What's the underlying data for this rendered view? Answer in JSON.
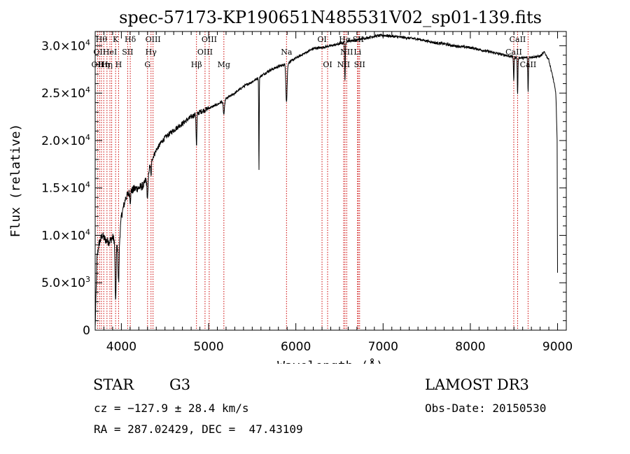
{
  "chart_data": {
    "type": "line",
    "title": "spec-57173-KP190651N485531V02_sp01-139.fits",
    "xlabel": "Wavelength (Å)",
    "ylabel": "Flux (relative)",
    "xlim": [
      3700,
      9100
    ],
    "ylim": [
      0,
      31500
    ],
    "xticks": [
      {
        "value": 4000,
        "label": "4000"
      },
      {
        "value": 5000,
        "label": "5000"
      },
      {
        "value": 6000,
        "label": "6000"
      },
      {
        "value": 7000,
        "label": "7000"
      },
      {
        "value": 8000,
        "label": "8000"
      },
      {
        "value": 9000,
        "label": "9000"
      }
    ],
    "yticks": [
      {
        "value": 0,
        "mant": "0",
        "exp": ""
      },
      {
        "value": 5000,
        "mant": "5.0×10",
        "exp": "3"
      },
      {
        "value": 10000,
        "mant": "1.0×10",
        "exp": "4"
      },
      {
        "value": 15000,
        "mant": "1.5×10",
        "exp": "4"
      },
      {
        "value": 20000,
        "mant": "2.0×10",
        "exp": "4"
      },
      {
        "value": 25000,
        "mant": "2.5×10",
        "exp": "4"
      },
      {
        "value": 30000,
        "mant": "3.0×10",
        "exp": "4"
      }
    ],
    "continuum": [
      [
        3700,
        200
      ],
      [
        3720,
        7500
      ],
      [
        3740,
        9000
      ],
      [
        3780,
        10000
      ],
      [
        3820,
        9500
      ],
      [
        3860,
        9300
      ],
      [
        3900,
        9800
      ],
      [
        3950,
        9000
      ],
      [
        3970,
        8500
      ],
      [
        4000,
        12000
      ],
      [
        4050,
        14000
      ],
      [
        4100,
        14600
      ],
      [
        4150,
        14900
      ],
      [
        4200,
        15000
      ],
      [
        4260,
        15300
      ],
      [
        4300,
        16500
      ],
      [
        4350,
        18000
      ],
      [
        4400,
        19000
      ],
      [
        4450,
        19700
      ],
      [
        4500,
        20300
      ],
      [
        4600,
        21100
      ],
      [
        4700,
        21800
      ],
      [
        4800,
        22500
      ],
      [
        4900,
        23000
      ],
      [
        5000,
        23400
      ],
      [
        5100,
        23800
      ],
      [
        5200,
        24400
      ],
      [
        5300,
        25000
      ],
      [
        5400,
        25700
      ],
      [
        5500,
        26200
      ],
      [
        5600,
        26800
      ],
      [
        5700,
        27400
      ],
      [
        5800,
        27800
      ],
      [
        5900,
        28100
      ],
      [
        6000,
        28700
      ],
      [
        6100,
        29200
      ],
      [
        6200,
        29700
      ],
      [
        6300,
        29800
      ],
      [
        6400,
        30000
      ],
      [
        6500,
        30200
      ],
      [
        6600,
        30500
      ],
      [
        6700,
        30600
      ],
      [
        6800,
        30800
      ],
      [
        6900,
        31000
      ],
      [
        7000,
        31100
      ],
      [
        7100,
        31000
      ],
      [
        7200,
        30900
      ],
      [
        7300,
        30800
      ],
      [
        7400,
        30700
      ],
      [
        7500,
        30500
      ],
      [
        7600,
        30300
      ],
      [
        7700,
        30200
      ],
      [
        7800,
        30000
      ],
      [
        7900,
        29900
      ],
      [
        8000,
        29800
      ],
      [
        8100,
        29600
      ],
      [
        8200,
        29400
      ],
      [
        8300,
        29200
      ],
      [
        8400,
        29000
      ],
      [
        8500,
        28800
      ],
      [
        8600,
        28700
      ],
      [
        8700,
        28800
      ],
      [
        8800,
        28900
      ],
      [
        8850,
        29300
      ],
      [
        8900,
        28500
      ],
      [
        8950,
        26500
      ],
      [
        8980,
        25000
      ],
      [
        8995,
        20000
      ],
      [
        9000,
        6000
      ]
    ],
    "absorption_lines": [
      {
        "center": 3934,
        "depth": 6500,
        "width": 8
      },
      {
        "center": 3968,
        "depth": 3500,
        "width": 8
      },
      {
        "center": 4102,
        "depth": 1000,
        "width": 6
      },
      {
        "center": 4300,
        "depth": 2500,
        "width": 10
      },
      {
        "center": 4340,
        "depth": 1500,
        "width": 6
      },
      {
        "center": 4861,
        "depth": 3500,
        "width": 6
      },
      {
        "center": 5175,
        "depth": 1500,
        "width": 10
      },
      {
        "center": 5577,
        "depth": 10000,
        "width": 4
      },
      {
        "center": 5893,
        "depth": 4000,
        "width": 10
      },
      {
        "center": 6563,
        "depth": 4200,
        "width": 5
      },
      {
        "center": 8498,
        "depth": 2500,
        "width": 5
      },
      {
        "center": 8542,
        "depth": 4000,
        "width": 5
      },
      {
        "center": 8662,
        "depth": 3700,
        "width": 5
      }
    ],
    "line_markers": [
      {
        "x": 3727,
        "label": "OII",
        "row": 2
      },
      {
        "x": 3750,
        "label": "OII",
        "row": 1
      },
      {
        "x": 3771,
        "label": "Hθ",
        "row": 0
      },
      {
        "x": 3798,
        "label": "Hη",
        "row": 2
      },
      {
        "x": 3835,
        "label": "Hη",
        "row": 2
      },
      {
        "x": 3869,
        "label": "HeI",
        "row": 1
      },
      {
        "x": 3889,
        "label": "",
        "row": 0
      },
      {
        "x": 3934,
        "label": "K",
        "row": 0
      },
      {
        "x": 3968,
        "label": "H",
        "row": 2
      },
      {
        "x": 4072,
        "label": "SII",
        "row": 1
      },
      {
        "x": 4102,
        "label": "Hδ",
        "row": 0
      },
      {
        "x": 4300,
        "label": "G",
        "row": 2
      },
      {
        "x": 4340,
        "label": "Hγ",
        "row": 1
      },
      {
        "x": 4363,
        "label": "OIII",
        "row": 0
      },
      {
        "x": 4861,
        "label": "Hβ",
        "row": 2
      },
      {
        "x": 4959,
        "label": "OIII",
        "row": 1
      },
      {
        "x": 5007,
        "label": "OIII",
        "row": 0
      },
      {
        "x": 5175,
        "label": "Mg",
        "row": 2
      },
      {
        "x": 5893,
        "label": "Na",
        "row": 1
      },
      {
        "x": 6300,
        "label": "OI",
        "row": 0
      },
      {
        "x": 6364,
        "label": "OI",
        "row": 2
      },
      {
        "x": 6548,
        "label": "NII",
        "row": 2
      },
      {
        "x": 6563,
        "label": "Hα",
        "row": 0
      },
      {
        "x": 6583,
        "label": "NII",
        "row": 1
      },
      {
        "x": 6707,
        "label": "Li",
        "row": 1
      },
      {
        "x": 6716,
        "label": "SII",
        "row": 0
      },
      {
        "x": 6731,
        "label": "SII",
        "row": 2
      },
      {
        "x": 8498,
        "label": "CaII",
        "row": 1
      },
      {
        "x": 8542,
        "label": "CaII",
        "row": 0
      },
      {
        "x": 8662,
        "label": "CaII",
        "row": 2
      }
    ]
  },
  "info": {
    "object_class": "STAR",
    "subclass": "G3",
    "survey": "LAMOST DR3",
    "redshift_line": "cz = −127.9 ± 28.4 km/s",
    "obs_date": "Obs-Date: 20150530",
    "coords": "RA = 287.02429, DEC =  47.43109"
  },
  "colors": {
    "spectrum": "#000000",
    "marker": "#cc0000",
    "axis": "#000000",
    "background": "#ffffff"
  }
}
